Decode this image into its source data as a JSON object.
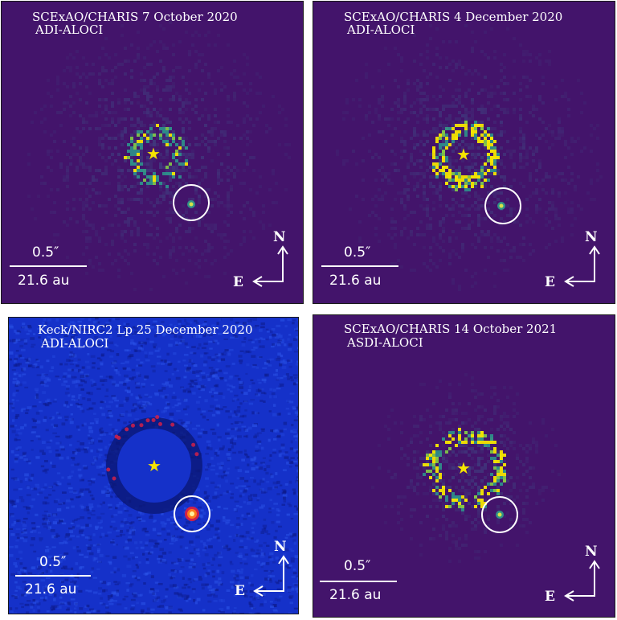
{
  "panels": [
    {
      "title": "SCExAO/CHARIS 7 October 2020",
      "subtitle": "ADI-ALOCI",
      "scale_angle": "0.5″",
      "scale_au": "21.6 au",
      "north": "N",
      "east": "E",
      "background_color": "#43146b",
      "style": "charis-sparse"
    },
    {
      "title": "SCExAO/CHARIS 4 December 2020",
      "subtitle": "ADI-ALOCI",
      "scale_angle": "0.5″",
      "scale_au": "21.6 au",
      "north": "N",
      "east": "E",
      "background_color": "#43146b",
      "style": "charis-bright"
    },
    {
      "title": "Keck/NIRC2 Lp 25 December 2020",
      "subtitle": "ADI-ALOCI",
      "scale_angle": "0.5″",
      "scale_au": "21.6 au",
      "north": "N",
      "east": "E",
      "background_color": "#1531c9",
      "style": "nirc2"
    },
    {
      "title": "SCExAO/CHARIS 14 October 2021",
      "subtitle": "ASDI-ALOCI",
      "scale_angle": "0.5″",
      "scale_au": "21.6 au",
      "north": "N",
      "east": "E",
      "background_color": "#43146b",
      "style": "charis-asdi"
    }
  ],
  "colors": {
    "star": "#f5e400",
    "companion_ring": "#ffffff",
    "speckle_teal": "#2e8c8a",
    "speckle_yellow": "#f5e400",
    "nirc2_red": "#d0204a"
  },
  "icons": {
    "host_star": "star-icon",
    "companion_marker": "circle-marker",
    "compass": "north-east-compass-icon"
  }
}
